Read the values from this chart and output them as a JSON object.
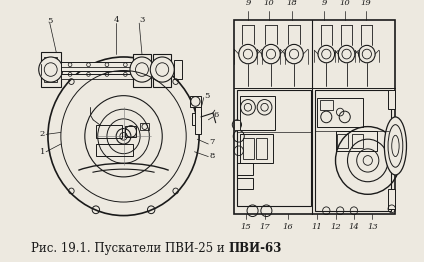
{
  "bg_color": "#ede9e0",
  "fig_width": 4.24,
  "fig_height": 2.62,
  "dpi": 100,
  "caption_normal": "Рис. 19.1. Пускатели ПВИ-25 и ",
  "caption_bold": "ПВИ-63",
  "caption_fontsize": 8.5,
  "line_color": "#1a1a1a",
  "text_color": "#1a1a1a",
  "label_fontsize": 5.5
}
